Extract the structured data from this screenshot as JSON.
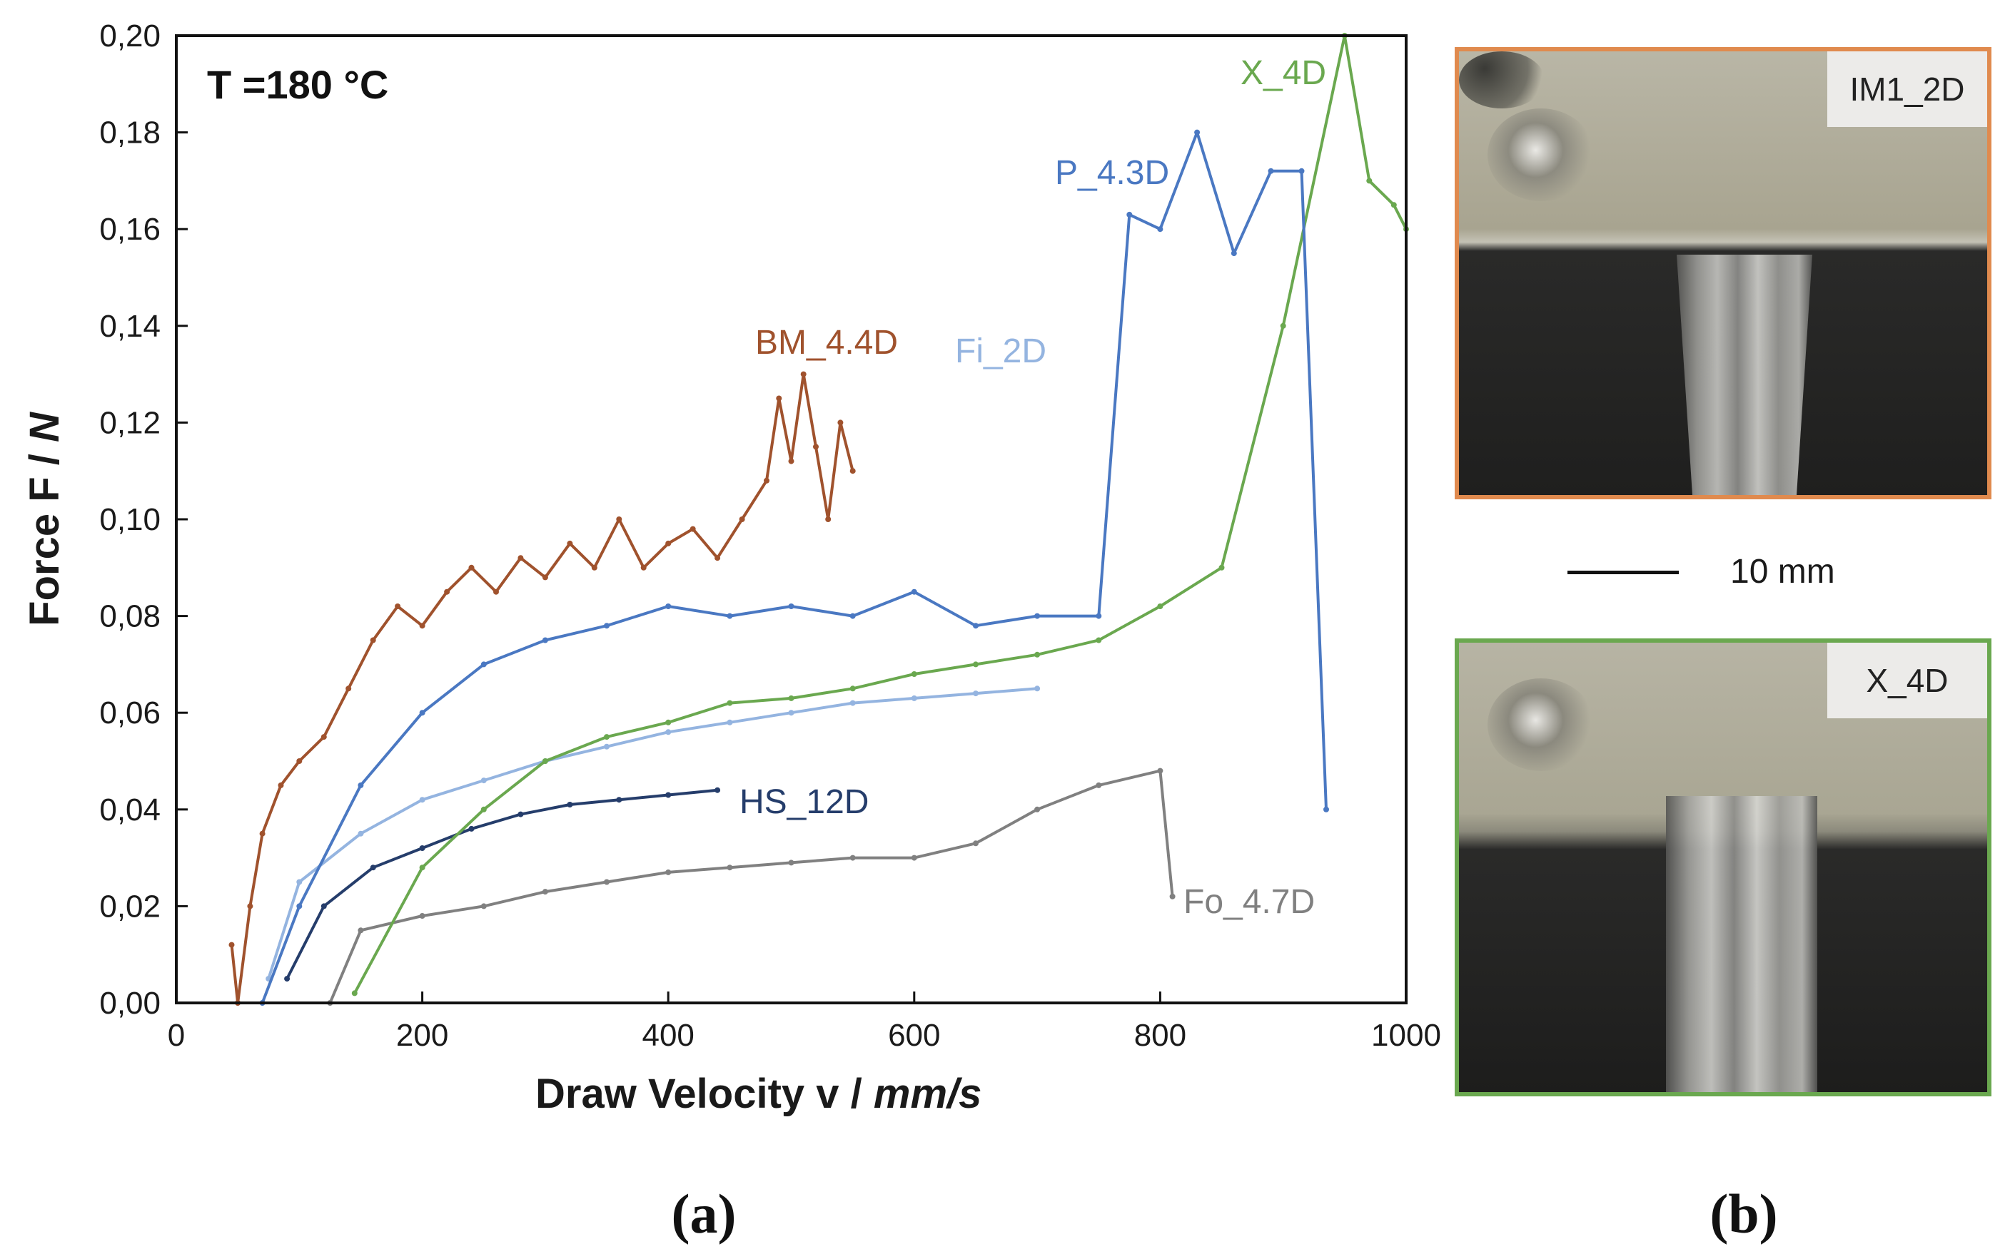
{
  "chart_data": {
    "type": "line",
    "annotation": "T =180 °C",
    "xlabel": "Draw Velocity v / mm/s",
    "xlabel_parts": {
      "plain": "Draw Velocity v / ",
      "italic": "mm/s"
    },
    "ylabel": "Force F / N",
    "ylabel_parts": {
      "plain": "Force F / ",
      "italic": "N"
    },
    "xlim": [
      0,
      1000
    ],
    "ylim": [
      0,
      0.2
    ],
    "x_ticks": [
      "0",
      "200",
      "400",
      "600",
      "800",
      "1000"
    ],
    "y_ticks": [
      "0,00",
      "0,02",
      "0,04",
      "0,06",
      "0,08",
      "0,10",
      "0,12",
      "0,14",
      "0,16",
      "0,18",
      "0,20"
    ],
    "grid": false,
    "series": [
      {
        "name": "BM_4.4D",
        "color": "#a0522d",
        "x": [
          45,
          50,
          60,
          70,
          85,
          100,
          120,
          140,
          160,
          180,
          200,
          220,
          240,
          260,
          280,
          300,
          320,
          340,
          360,
          380,
          400,
          420,
          440,
          460,
          480,
          490,
          500,
          510,
          520,
          530,
          540,
          550
        ],
        "y": [
          0.012,
          0.0,
          0.02,
          0.035,
          0.045,
          0.05,
          0.055,
          0.065,
          0.075,
          0.082,
          0.078,
          0.085,
          0.09,
          0.085,
          0.092,
          0.088,
          0.095,
          0.09,
          0.1,
          0.09,
          0.095,
          0.098,
          0.092,
          0.1,
          0.108,
          0.125,
          0.112,
          0.13,
          0.115,
          0.1,
          0.12,
          0.11
        ]
      },
      {
        "name": "P_4.3D",
        "color": "#4a78c2",
        "x": [
          70,
          100,
          150,
          200,
          250,
          300,
          350,
          400,
          450,
          500,
          550,
          600,
          650,
          700,
          750,
          775,
          800,
          830,
          860,
          890,
          915,
          935
        ],
        "y": [
          0.0,
          0.02,
          0.045,
          0.06,
          0.07,
          0.075,
          0.078,
          0.082,
          0.08,
          0.082,
          0.08,
          0.085,
          0.078,
          0.08,
          0.08,
          0.163,
          0.16,
          0.18,
          0.155,
          0.172,
          0.172,
          0.04
        ]
      },
      {
        "name": "Fi_2D",
        "color": "#94b4e0",
        "x": [
          75,
          100,
          150,
          200,
          250,
          300,
          350,
          400,
          450,
          500,
          550,
          600,
          650,
          700
        ],
        "y": [
          0.005,
          0.025,
          0.035,
          0.042,
          0.046,
          0.05,
          0.053,
          0.056,
          0.058,
          0.06,
          0.062,
          0.063,
          0.064,
          0.065
        ]
      },
      {
        "name": "X_4D",
        "color": "#6aa84f",
        "x": [
          145,
          200,
          250,
          300,
          350,
          400,
          450,
          500,
          550,
          600,
          650,
          700,
          750,
          800,
          850,
          900,
          950,
          970,
          990,
          1000
        ],
        "y": [
          0.002,
          0.028,
          0.04,
          0.05,
          0.055,
          0.058,
          0.062,
          0.063,
          0.065,
          0.068,
          0.07,
          0.072,
          0.075,
          0.082,
          0.09,
          0.14,
          0.2,
          0.17,
          0.165,
          0.16
        ]
      },
      {
        "name": "HS_12D",
        "color": "#253d6b",
        "x": [
          90,
          120,
          160,
          200,
          240,
          280,
          320,
          360,
          400,
          440
        ],
        "y": [
          0.005,
          0.02,
          0.028,
          0.032,
          0.036,
          0.039,
          0.041,
          0.042,
          0.043,
          0.044
        ]
      },
      {
        "name": "Fo_4.7D",
        "color": "#808080",
        "x": [
          125,
          150,
          200,
          250,
          300,
          350,
          400,
          450,
          500,
          550,
          600,
          650,
          700,
          750,
          800,
          810
        ],
        "y": [
          0.0,
          0.015,
          0.018,
          0.02,
          0.023,
          0.025,
          0.027,
          0.028,
          0.029,
          0.03,
          0.03,
          0.033,
          0.04,
          0.045,
          0.048,
          0.022
        ]
      }
    ]
  },
  "panel_a_label": "(a)",
  "panel_b_label": "(b)",
  "photos": [
    {
      "tag": "IM1_2D",
      "border_color": "#e08a4e"
    },
    {
      "tag": "X_4D",
      "border_color": "#6aa84f"
    }
  ],
  "scale_bar": {
    "label": "10 mm"
  }
}
